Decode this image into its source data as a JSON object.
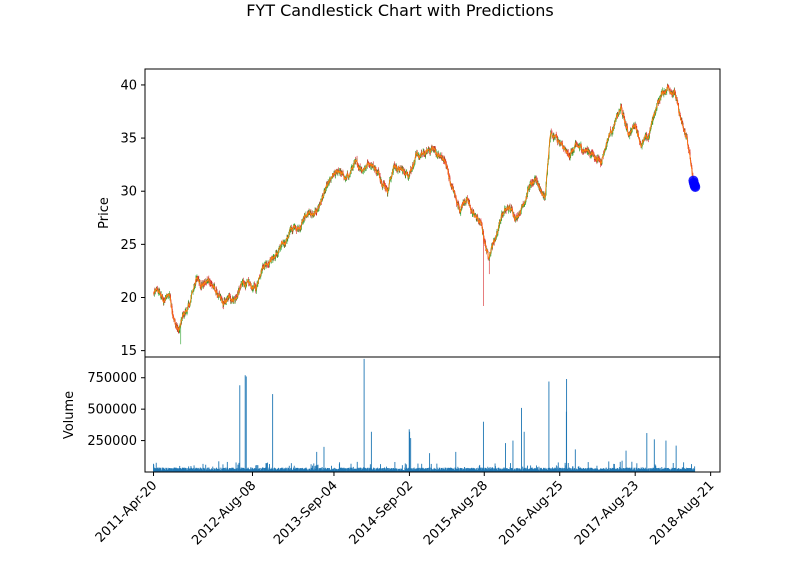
{
  "chart_data": {
    "type": "candlestick",
    "title": "FYT Candlestick Chart with Predictions",
    "price_panel": {
      "ylabel": "Price",
      "ylim": [
        14.4,
        41.5
      ],
      "yticks": [
        15,
        20,
        25,
        30,
        35,
        40
      ],
      "anchors": [
        [
          "2011-04-20",
          20.4
        ],
        [
          "2011-05-15",
          20.5
        ],
        [
          "2011-06-10",
          19.6
        ],
        [
          "2011-07-05",
          20.4
        ],
        [
          "2011-08-01",
          17.6
        ],
        [
          "2011-08-20",
          16.8
        ],
        [
          "2011-09-10",
          18.3
        ],
        [
          "2011-10-10",
          19.2
        ],
        [
          "2011-11-10",
          21.8
        ],
        [
          "2011-12-10",
          21.3
        ],
        [
          "2012-01-15",
          21.6
        ],
        [
          "2012-02-20",
          20.3
        ],
        [
          "2012-03-20",
          19.2
        ],
        [
          "2012-04-20",
          20.0
        ],
        [
          "2012-05-20",
          19.9
        ],
        [
          "2012-06-25",
          21.4
        ],
        [
          "2012-08-01",
          21.0
        ],
        [
          "2012-08-25",
          20.8
        ],
        [
          "2012-09-20",
          22.9
        ],
        [
          "2012-10-25",
          23.5
        ],
        [
          "2012-12-01",
          24.0
        ],
        [
          "2013-01-10",
          25.2
        ],
        [
          "2013-02-10",
          26.4
        ],
        [
          "2013-03-20",
          26.7
        ],
        [
          "2013-05-01",
          28.0
        ],
        [
          "2013-06-01",
          27.6
        ],
        [
          "2013-07-10",
          29.4
        ],
        [
          "2013-08-20",
          31.0
        ],
        [
          "2013-10-01",
          32.0
        ],
        [
          "2013-11-01",
          31.0
        ],
        [
          "2013-12-10",
          32.5
        ],
        [
          "2014-01-20",
          32.2
        ],
        [
          "2014-03-01",
          32.8
        ],
        [
          "2014-04-10",
          31.5
        ],
        [
          "2014-05-20",
          30.2
        ],
        [
          "2014-06-20",
          32.4
        ],
        [
          "2014-07-20",
          32.0
        ],
        [
          "2014-08-25",
          31.6
        ],
        [
          "2014-10-01",
          33.1
        ],
        [
          "2014-11-10",
          33.4
        ],
        [
          "2014-12-20",
          34.1
        ],
        [
          "2015-01-20",
          33.4
        ],
        [
          "2015-02-20",
          32.8
        ],
        [
          "2015-03-25",
          30.4
        ],
        [
          "2015-05-01",
          28.4
        ],
        [
          "2015-06-01",
          29.3
        ],
        [
          "2015-07-01",
          28.0
        ],
        [
          "2015-08-10",
          27.0
        ],
        [
          "2015-09-15",
          23.9
        ],
        [
          "2015-10-20",
          25.6
        ],
        [
          "2015-11-20",
          27.8
        ],
        [
          "2015-12-25",
          28.4
        ],
        [
          "2016-01-30",
          27.6
        ],
        [
          "2016-03-01",
          28.8
        ],
        [
          "2016-04-01",
          30.5
        ],
        [
          "2016-05-10",
          30.8
        ],
        [
          "2016-06-15",
          29.4
        ],
        [
          "2016-07-10",
          35.4
        ],
        [
          "2016-08-05",
          35.0
        ],
        [
          "2016-09-01",
          34.2
        ],
        [
          "2016-10-05",
          33.4
        ],
        [
          "2016-11-10",
          34.1
        ],
        [
          "2016-12-20",
          34.0
        ],
        [
          "2017-02-01",
          33.5
        ],
        [
          "2017-03-10",
          32.8
        ],
        [
          "2017-04-20",
          35.4
        ],
        [
          "2017-05-20",
          36.5
        ],
        [
          "2017-06-15",
          37.8
        ],
        [
          "2017-07-20",
          35.4
        ],
        [
          "2017-08-25",
          36.3
        ],
        [
          "2017-09-20",
          34.5
        ],
        [
          "2017-10-25",
          35.0
        ],
        [
          "2017-11-25",
          37.5
        ],
        [
          "2017-12-25",
          39.0
        ],
        [
          "2018-01-25",
          39.8
        ],
        [
          "2018-03-01",
          39.4
        ],
        [
          "2018-03-20",
          37.5
        ],
        [
          "2018-04-10",
          35.8
        ],
        [
          "2018-05-01",
          34.8
        ],
        [
          "2018-05-25",
          31.5
        ],
        [
          "2018-06-05",
          30.4
        ]
      ],
      "dips": [
        [
          "2015-08-24",
          19.2
        ],
        [
          "2011-08-28",
          15.6
        ],
        [
          "2015-09-20",
          22.2
        ]
      ],
      "predictions": [
        [
          "2018-05-30",
          31.0
        ],
        [
          "2018-06-01",
          30.8
        ],
        [
          "2018-06-04",
          30.6
        ],
        [
          "2018-06-06",
          30.5
        ],
        [
          "2018-06-08",
          30.4
        ]
      ]
    },
    "volume_panel": {
      "ylabel": "Volume",
      "ylim": [
        0,
        915000
      ],
      "yticks": [
        250000,
        500000,
        750000
      ],
      "spikes": [
        [
          "2012-06-10",
          690000
        ],
        [
          "2012-07-06",
          770000
        ],
        [
          "2012-07-10",
          760000
        ],
        [
          "2012-11-15",
          620000
        ],
        [
          "2014-01-28",
          900000
        ],
        [
          "2014-03-05",
          320000
        ],
        [
          "2014-09-02",
          340000
        ],
        [
          "2014-09-05",
          320000
        ],
        [
          "2014-09-10",
          270000
        ],
        [
          "2015-08-24",
          400000
        ],
        [
          "2016-02-25",
          510000
        ],
        [
          "2016-03-08",
          320000
        ],
        [
          "2016-07-05",
          720000
        ],
        [
          "2016-09-26",
          480000
        ],
        [
          "2016-09-28",
          740000
        ],
        [
          "2017-10-20",
          310000
        ],
        [
          "2018-01-20",
          250000
        ],
        [
          "2017-11-25",
          260000
        ],
        [
          "2016-01-15",
          250000
        ],
        [
          "2015-12-10",
          230000
        ],
        [
          "2012-04-10",
          80000
        ],
        [
          "2013-06-15",
          160000
        ],
        [
          "2013-07-20",
          200000
        ],
        [
          "2014-12-10",
          150000
        ],
        [
          "2015-04-15",
          160000
        ],
        [
          "2016-11-10",
          180000
        ],
        [
          "2017-07-10",
          170000
        ],
        [
          "2018-03-10",
          210000
        ]
      ]
    },
    "x_axis": {
      "xlim": [
        "2011-03-10",
        "2018-10-05"
      ],
      "tick_labels": [
        "2011-Apr-20",
        "2012-Aug-08",
        "2013-Sep-04",
        "2014-Sep-02",
        "2015-Aug-28",
        "2016-Aug-25",
        "2017-Aug-23",
        "2018-Aug-21"
      ],
      "tick_dates": [
        "2011-04-20",
        "2012-08-08",
        "2013-09-04",
        "2014-09-02",
        "2015-08-28",
        "2016-08-25",
        "2017-08-23",
        "2018-08-21"
      ]
    },
    "colors": {
      "up": "#2ca02c",
      "down": "#d62728",
      "close_line": "#ff7f0e",
      "volume": "#1f77b4",
      "prediction": "#0000ff"
    },
    "grid": false
  }
}
